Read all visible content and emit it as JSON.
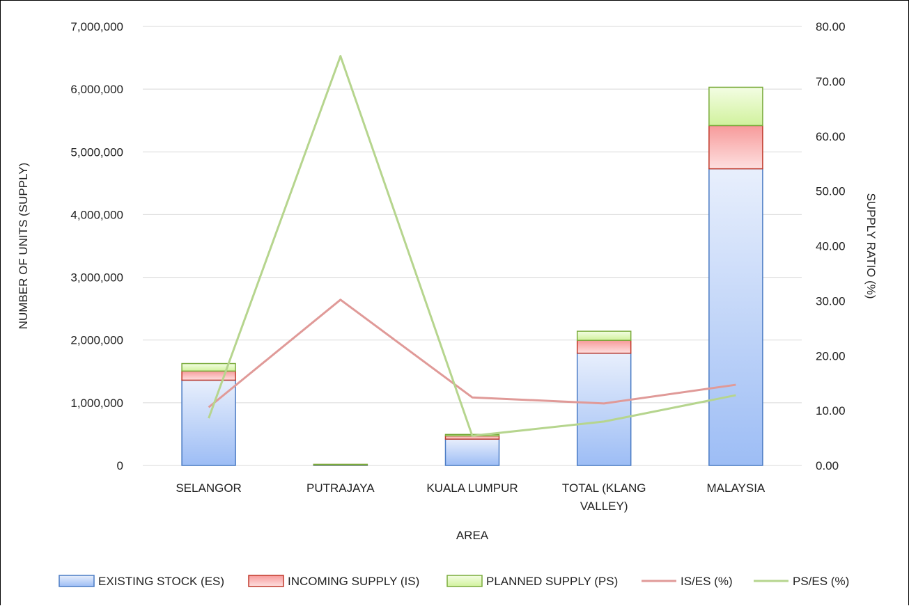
{
  "chart_data": {
    "type": "bar",
    "stacked": true,
    "categories": [
      [
        "SELANGOR"
      ],
      [
        "PUTRAJAYA"
      ],
      [
        "KUALA LUMPUR"
      ],
      [
        "TOTAL (KLANG",
        "VALLEY)"
      ],
      [
        "MALAYSIA"
      ]
    ],
    "xlabel": "AREA",
    "ylabel": "NUMBER OF UNITS (SUPPLY)",
    "y2label": "SUPPLY RATIO (%)",
    "ylim": [
      0,
      7000000
    ],
    "y2lim": [
      0,
      80
    ],
    "yticks": [
      "0",
      "1,000,000",
      "2,000,000",
      "3,000,000",
      "4,000,000",
      "5,000,000",
      "6,000,000",
      "7,000,000"
    ],
    "y2ticks": [
      "0.00",
      "10.00",
      "20.00",
      "30.00",
      "40.00",
      "50.00",
      "60.00",
      "70.00",
      "80.00"
    ],
    "grid": true,
    "legend_position": "bottom",
    "bar_series": [
      {
        "name": "EXISTING STOCK (ES)",
        "values": [
          1360000,
          6500,
          420000,
          1790000,
          4730000
        ],
        "color": "#a9c4f5",
        "stroke": "#4a7bc4"
      },
      {
        "name": "INCOMING SUPPLY (IS)",
        "values": [
          145000,
          2000,
          52000,
          205000,
          690000
        ],
        "color": "#f9a9a9",
        "stroke": "#c0392b"
      },
      {
        "name": "PLANNED SUPPLY (PS)",
        "values": [
          120000,
          4800,
          23000,
          145000,
          610000
        ],
        "color": "#d6f5a0",
        "stroke": "#7aab3c"
      }
    ],
    "line_series": [
      {
        "name": "IS/ES (%)",
        "values": [
          10.6,
          30.2,
          12.4,
          11.3,
          14.7
        ],
        "color": "#e09a98"
      },
      {
        "name": "PS/ES (%)",
        "values": [
          8.6,
          74.6,
          5.4,
          8.0,
          12.8
        ],
        "color": "#b6d58e"
      }
    ]
  }
}
